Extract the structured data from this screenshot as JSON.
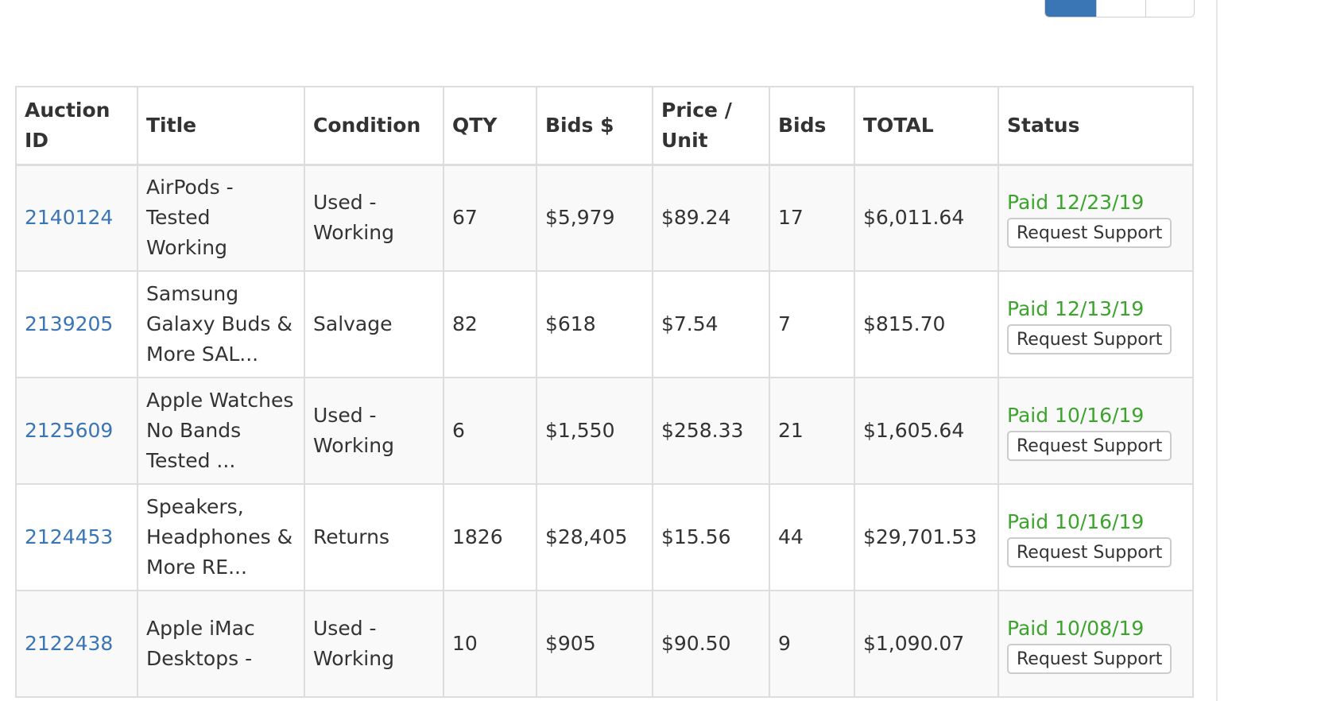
{
  "table": {
    "headers": {
      "auction_id": "Auction ID",
      "title": "Title",
      "condition": "Condition",
      "qty": "QTY",
      "bids_dollar": "Bids $",
      "price_unit": "Price / Unit",
      "bids": "Bids",
      "total": "TOTAL",
      "status": "Status"
    },
    "rows": [
      {
        "auction_id": "2140124",
        "title": "AirPods - Tested Working",
        "condition": "Used - Working",
        "qty": "67",
        "bids_dollar": "$5,979",
        "price_unit": "$89.24",
        "bids": "17",
        "total": "$6,011.64",
        "status": "Paid 12/23/19",
        "action": "Request Support"
      },
      {
        "auction_id": "2139205",
        "title": "Samsung Galaxy Buds & More SAL...",
        "condition": "Salvage",
        "qty": "82",
        "bids_dollar": "$618",
        "price_unit": "$7.54",
        "bids": "7",
        "total": "$815.70",
        "status": "Paid 12/13/19",
        "action": "Request Support"
      },
      {
        "auction_id": "2125609",
        "title": "Apple Watches No Bands Tested ...",
        "condition": "Used - Working",
        "qty": "6",
        "bids_dollar": "$1,550",
        "price_unit": "$258.33",
        "bids": "21",
        "total": "$1,605.64",
        "status": "Paid 10/16/19",
        "action": "Request Support"
      },
      {
        "auction_id": "2124453",
        "title": "Speakers, Headphones & More RE...",
        "condition": "Returns",
        "qty": "1826",
        "bids_dollar": "$28,405",
        "price_unit": "$15.56",
        "bids": "44",
        "total": "$29,701.53",
        "status": "Paid 10/16/19",
        "action": "Request Support"
      },
      {
        "auction_id": "2122438",
        "title": "Apple iMac Desktops -",
        "condition": "Used - Working",
        "qty": "10",
        "bids_dollar": "$905",
        "price_unit": "$90.50",
        "bids": "9",
        "total": "$1,090.07",
        "status": "Paid 10/08/19",
        "action": "Request Support"
      }
    ]
  },
  "colors": {
    "link": "#3a75b5",
    "paid": "#3aa42b",
    "active_segment": "#3a75b5"
  }
}
